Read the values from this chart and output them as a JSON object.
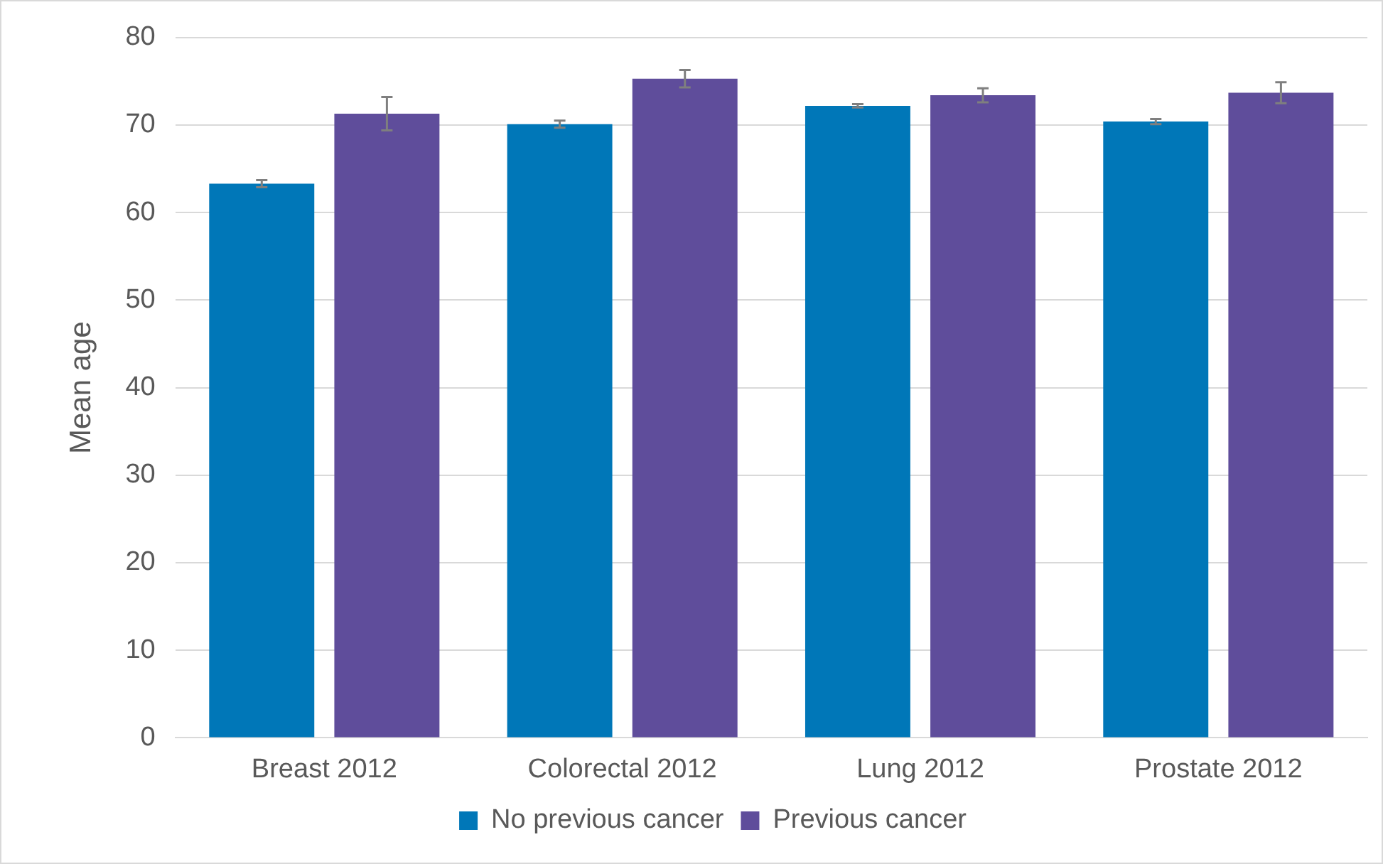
{
  "chart_data": {
    "type": "bar",
    "ylabel": "Mean age",
    "categories": [
      "Breast 2012",
      "Colorectal 2012",
      "Lung 2012",
      "Prostate 2012"
    ],
    "series": [
      {
        "name": "No previous cancer",
        "color": "#0077b8",
        "values": [
          63.3,
          70.1,
          72.2,
          70.4
        ],
        "errors": [
          0.4,
          0.4,
          0.2,
          0.3
        ]
      },
      {
        "name": "Previous cancer",
        "color": "#5f4d9b",
        "values": [
          71.3,
          75.3,
          73.4,
          73.7
        ],
        "errors": [
          1.9,
          1.0,
          0.8,
          1.2
        ]
      }
    ],
    "ylim": [
      0,
      80
    ],
    "yticks": [
      0,
      10,
      20,
      30,
      40,
      50,
      60,
      70,
      80
    ],
    "grid": "y",
    "legend": "bottom"
  }
}
